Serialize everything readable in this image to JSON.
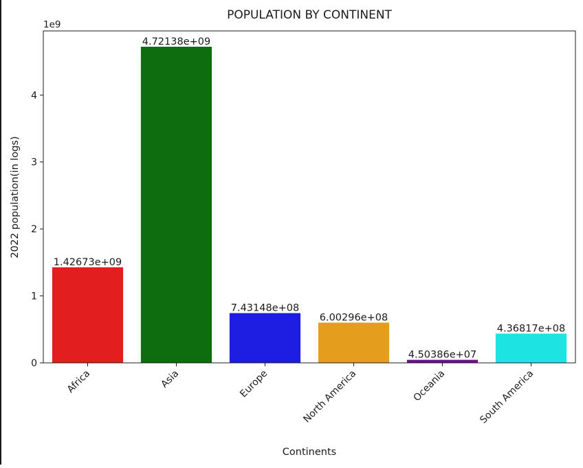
{
  "chart_data": {
    "type": "bar",
    "title": "POPULATION BY CONTINENT",
    "xlabel": "Continents",
    "ylabel": "2022 population(in logs)",
    "y_multiplier_label": "1e9",
    "y_multiplier": 1000000000,
    "categories": [
      "Africa",
      "Asia",
      "Europe",
      "North America",
      "Oceania",
      "South America"
    ],
    "values": [
      1426730000,
      4721380000,
      743148000,
      600296000,
      45038600,
      436817000
    ],
    "value_labels": [
      "1.42673e+09",
      "4.72138e+09",
      "7.43148e+08",
      "6.00296e+08",
      "4.50386e+07",
      "4.36817e+08"
    ],
    "colors": [
      "#e31e1e",
      "#0e6d0e",
      "#1e1ee3",
      "#e59d1e",
      "#6e0e8e",
      "#1ee3e3"
    ],
    "ylim": [
      0,
      4957449000
    ],
    "y_ticks": [
      0,
      1,
      2,
      3,
      4
    ],
    "grid": false,
    "legend": false
  }
}
